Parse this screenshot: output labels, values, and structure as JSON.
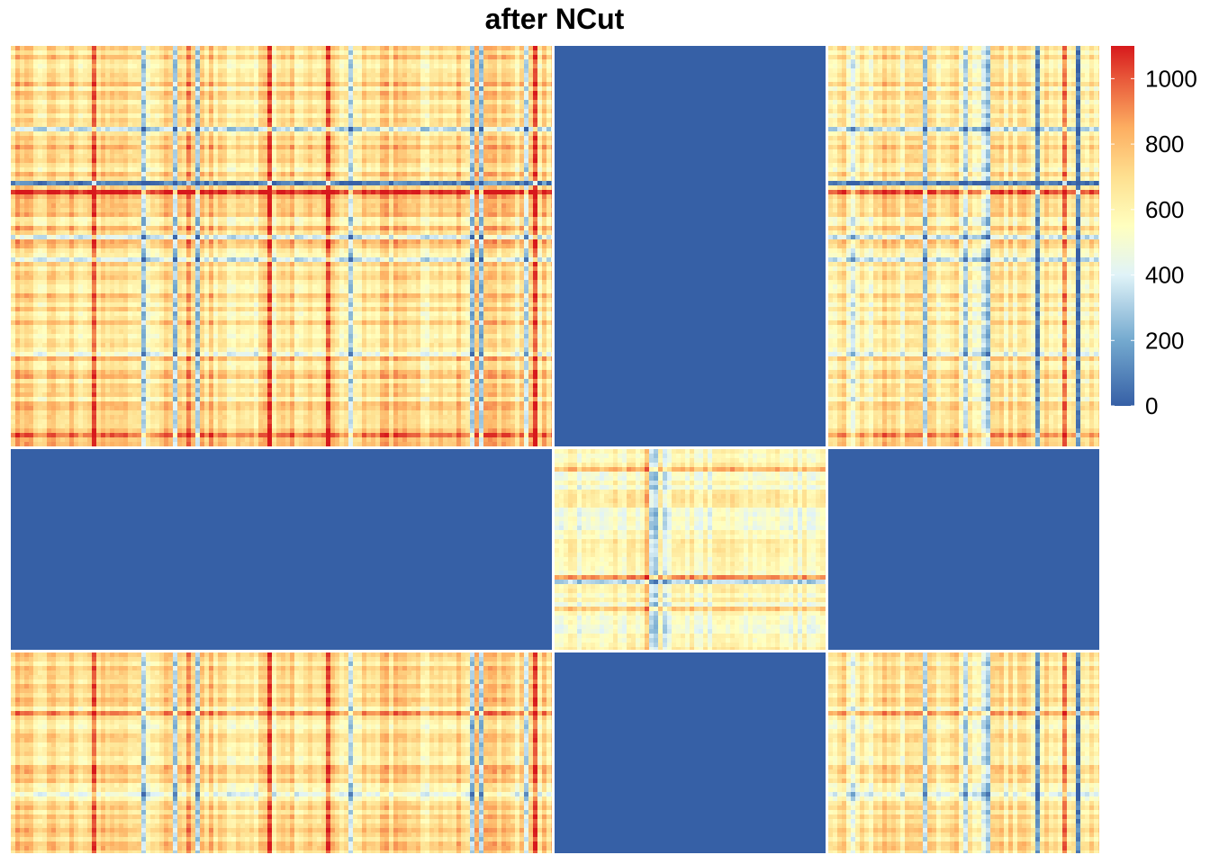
{
  "chart_data": {
    "type": "heatmap",
    "title": "after NCut",
    "xlabel": "",
    "ylabel": "",
    "color_scale": {
      "min": 0,
      "max": 1100,
      "stops": [
        {
          "value": 0,
          "color": "#3660a6"
        },
        {
          "value": 200,
          "color": "#74a9cf"
        },
        {
          "value": 400,
          "color": "#e0f3f8"
        },
        {
          "value": 550,
          "color": "#ffffbf"
        },
        {
          "value": 700,
          "color": "#fee090"
        },
        {
          "value": 850,
          "color": "#fdae61"
        },
        {
          "value": 1000,
          "color": "#e8583a"
        },
        {
          "value": 1100,
          "color": "#d7191c"
        }
      ]
    },
    "legend_ticks": [
      0,
      200,
      400,
      600,
      800,
      1000
    ],
    "legend_placement": "right",
    "cluster_fractions": [
      0.5,
      0.25,
      0.25
    ],
    "blocks": [
      {
        "row_cluster": 1,
        "col_cluster": 1,
        "mean": 700,
        "pattern": "high"
      },
      {
        "row_cluster": 1,
        "col_cluster": 2,
        "mean": 0,
        "pattern": "zero"
      },
      {
        "row_cluster": 1,
        "col_cluster": 3,
        "mean": 650,
        "pattern": "high"
      },
      {
        "row_cluster": 2,
        "col_cluster": 1,
        "mean": 0,
        "pattern": "zero"
      },
      {
        "row_cluster": 2,
        "col_cluster": 2,
        "mean": 550,
        "pattern": "medium"
      },
      {
        "row_cluster": 2,
        "col_cluster": 3,
        "mean": 0,
        "pattern": "zero"
      },
      {
        "row_cluster": 3,
        "col_cluster": 1,
        "mean": 680,
        "pattern": "high"
      },
      {
        "row_cluster": 3,
        "col_cluster": 2,
        "mean": 0,
        "pattern": "zero"
      },
      {
        "row_cluster": 3,
        "col_cluster": 3,
        "mean": 640,
        "pattern": "high"
      }
    ]
  }
}
